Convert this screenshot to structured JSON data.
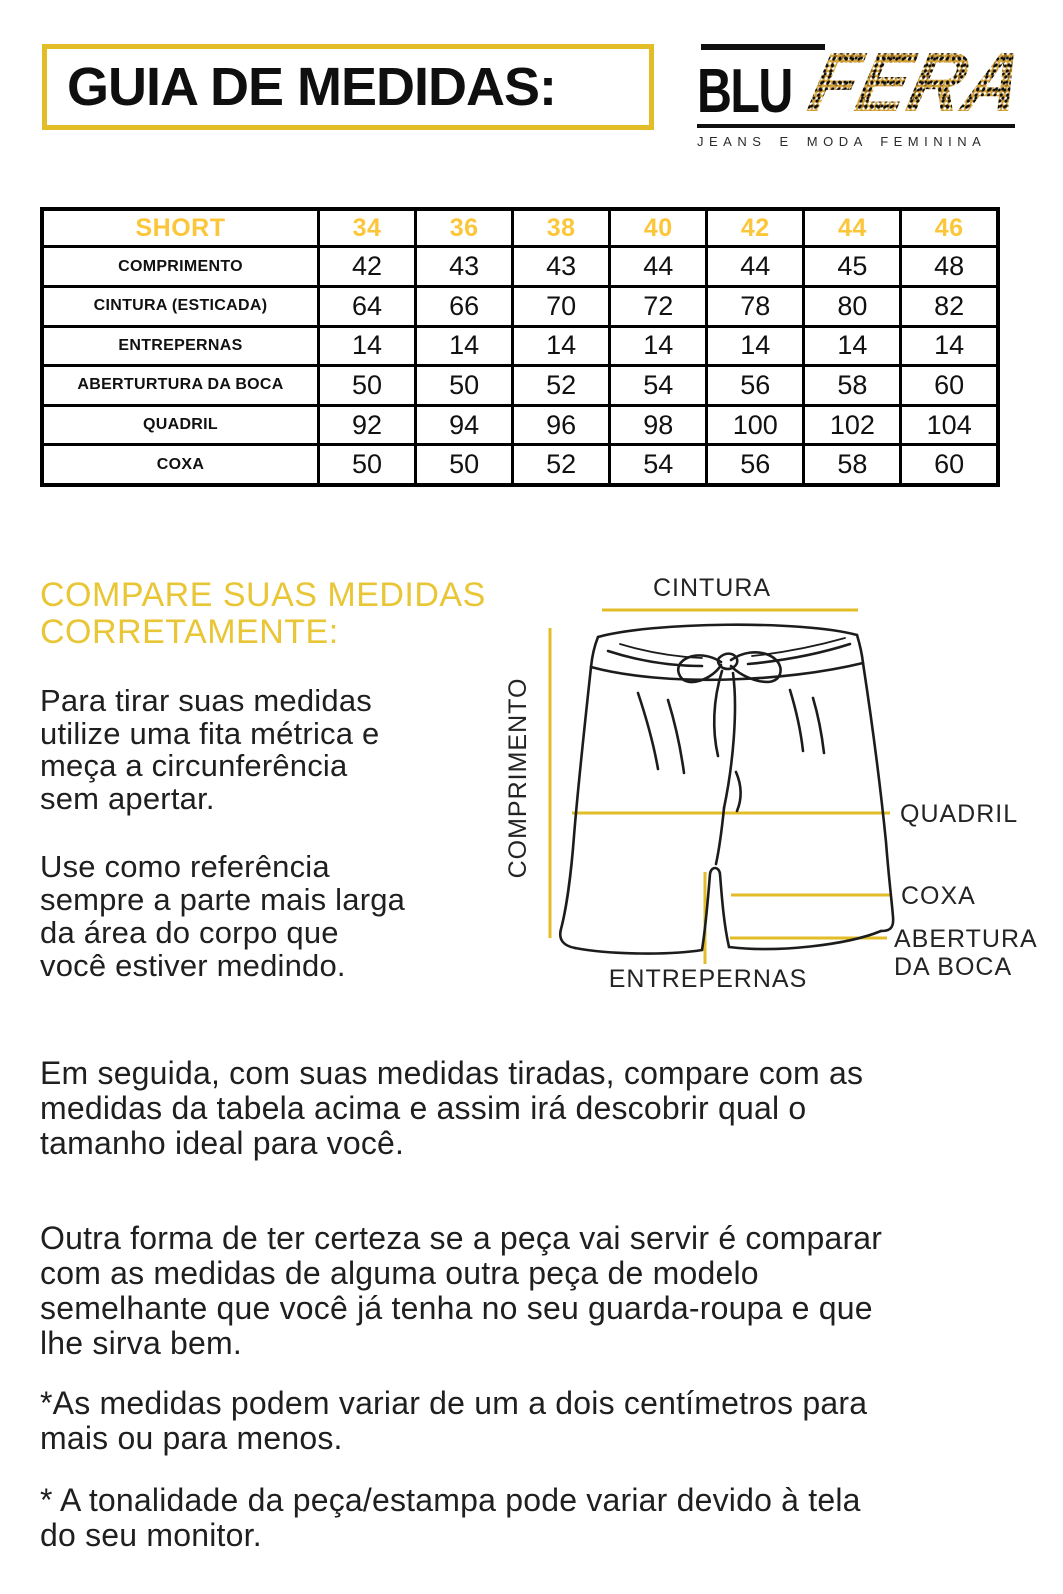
{
  "colors": {
    "gold_accent": "#e3bd27",
    "table_size_gold": "#fcc63a",
    "heading_gold": "#e9c636",
    "text_dark": "#1f1f1f",
    "logo_leopard_gold": "#d7a63c"
  },
  "header": {
    "title": "GUIA DE MEDIDAS:",
    "logo": {
      "blu": "BLU",
      "fera": "FERA",
      "tagline": "JEANS E MODA FEMININA"
    }
  },
  "chart_data": {
    "type": "table",
    "columns": [
      "SHORT",
      "34",
      "36",
      "38",
      "40",
      "42",
      "44",
      "46"
    ],
    "rows": [
      [
        "COMPRIMENTO",
        "42",
        "43",
        "43",
        "44",
        "44",
        "45",
        "48"
      ],
      [
        "CINTURA (ESTICADA)",
        "64",
        "66",
        "70",
        "72",
        "78",
        "80",
        "82"
      ],
      [
        "ENTREPERNAS",
        "14",
        "14",
        "14",
        "14",
        "14",
        "14",
        "14"
      ],
      [
        "ABERTURTURA DA BOCA",
        "50",
        "50",
        "52",
        "54",
        "56",
        "58",
        "60"
      ],
      [
        "QUADRIL",
        "92",
        "94",
        "96",
        "98",
        "100",
        "102",
        "104"
      ],
      [
        "COXA",
        "50",
        "50",
        "52",
        "54",
        "56",
        "58",
        "60"
      ]
    ]
  },
  "compare": {
    "heading": "COMPARE SUAS MEDIDAS\nCORRETAMENTE:",
    "p1": "Para tirar suas medidas\nutilize uma fita métrica e\nmeça a circunferência\nsem apertar.",
    "p2": "Use como referência\nsempre a parte mais larga\nda área do corpo que\nvocê estiver medindo."
  },
  "diagram": {
    "cintura": "CINTURA",
    "comprimento": "COMPRIMENTO",
    "quadril": "QUADRIL",
    "coxa": "COXA",
    "abertura_line1": "ABERTURA",
    "abertura_line2": "DA BOCA",
    "entrepernas": "ENTREPERNAS"
  },
  "notes": {
    "p3": "Em seguida, com suas medidas tiradas, compare com as\nmedidas da tabela acima e assim irá descobrir qual o\ntamanho ideal para você.",
    "p4": "Outra forma de ter certeza se a peça vai servir é comparar\ncom as medidas de alguma outra peça de modelo\nsemelhante que você já tenha no seu guarda-roupa e que\nlhe sirva bem.",
    "p5": "*As medidas podem variar de um a dois centímetros para\nmais ou para menos.",
    "p6": "* A tonalidade da peça/estampa pode variar devido à tela\ndo seu monitor."
  }
}
